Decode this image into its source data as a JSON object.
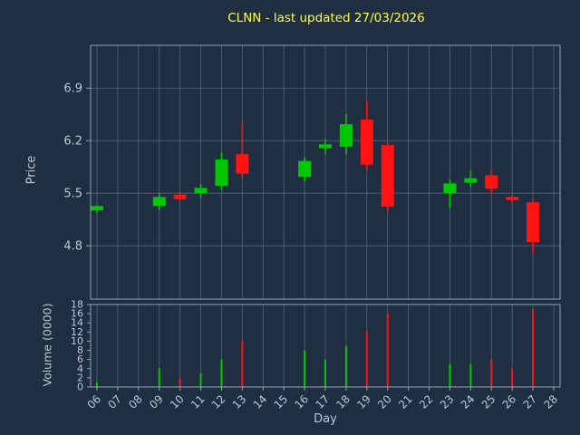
{
  "title": "CLNN - last updated 27/03/2026",
  "colors": {
    "background": "#1f2e40",
    "grid": "#546478",
    "spine": "#93a1b1",
    "text": "#bcc8d6",
    "title": "#ffff40",
    "up": "#00c800",
    "down": "#ff1414"
  },
  "price_axis": {
    "label": "Price",
    "ticks": [
      4.8,
      5.5,
      6.2,
      6.9
    ],
    "min": 4.09,
    "max": 7.47
  },
  "volume_axis": {
    "label": "Volume (0000)",
    "ticks": [
      0,
      2,
      4,
      6,
      8,
      10,
      12,
      14,
      16,
      18
    ],
    "min": 0,
    "max": 18
  },
  "x_axis": {
    "label": "Day",
    "categories": [
      "06",
      "07",
      "08",
      "09",
      "10",
      "11",
      "12",
      "13",
      "14",
      "15",
      "16",
      "17",
      "18",
      "19",
      "20",
      "21",
      "22",
      "23",
      "24",
      "25",
      "26",
      "27",
      "28"
    ]
  },
  "chart_data": {
    "type": "candlestick",
    "title": "CLNN - last updated 27/03/2026",
    "xlabel": "Day",
    "ylabel": "Price",
    "ylabel2": "Volume (0000)",
    "ylim_price": [
      4.09,
      7.47
    ],
    "ylim_volume": [
      0,
      18
    ],
    "grid": true,
    "candles": [
      {
        "day": "06",
        "open": 5.27,
        "high": 5.34,
        "low": 5.24,
        "close": 5.33,
        "volume": 1
      },
      {
        "day": "09",
        "open": 5.33,
        "high": 5.5,
        "low": 5.27,
        "close": 5.45,
        "volume": 4
      },
      {
        "day": "10",
        "open": 5.48,
        "high": 5.52,
        "low": 5.4,
        "close": 5.42,
        "volume": 2
      },
      {
        "day": "11",
        "open": 5.5,
        "high": 5.62,
        "low": 5.44,
        "close": 5.57,
        "volume": 3
      },
      {
        "day": "12",
        "open": 5.6,
        "high": 6.05,
        "low": 5.55,
        "close": 5.95,
        "volume": 6
      },
      {
        "day": "13",
        "open": 6.02,
        "high": 6.45,
        "low": 5.7,
        "close": 5.76,
        "volume": 10
      },
      {
        "day": "16",
        "open": 5.72,
        "high": 5.98,
        "low": 5.65,
        "close": 5.93,
        "volume": 8
      },
      {
        "day": "17",
        "open": 6.1,
        "high": 6.22,
        "low": 6.02,
        "close": 6.15,
        "volume": 6
      },
      {
        "day": "18",
        "open": 6.12,
        "high": 6.55,
        "low": 6.02,
        "close": 6.42,
        "volume": 9
      },
      {
        "day": "19",
        "open": 6.48,
        "high": 6.72,
        "low": 5.82,
        "close": 5.88,
        "volume": 12
      },
      {
        "day": "20",
        "open": 6.14,
        "high": 6.18,
        "low": 5.26,
        "close": 5.32,
        "volume": 16
      },
      {
        "day": "23",
        "open": 5.5,
        "high": 5.68,
        "low": 5.3,
        "close": 5.63,
        "volume": 5
      },
      {
        "day": "24",
        "open": 5.64,
        "high": 5.8,
        "low": 5.58,
        "close": 5.7,
        "volume": 5
      },
      {
        "day": "25",
        "open": 5.74,
        "high": 5.8,
        "low": 5.5,
        "close": 5.56,
        "volume": 6
      },
      {
        "day": "26",
        "open": 5.45,
        "high": 5.48,
        "low": 5.38,
        "close": 5.41,
        "volume": 4
      },
      {
        "day": "27",
        "open": 5.38,
        "high": 5.42,
        "low": 4.7,
        "close": 4.85,
        "volume": 17
      }
    ]
  }
}
